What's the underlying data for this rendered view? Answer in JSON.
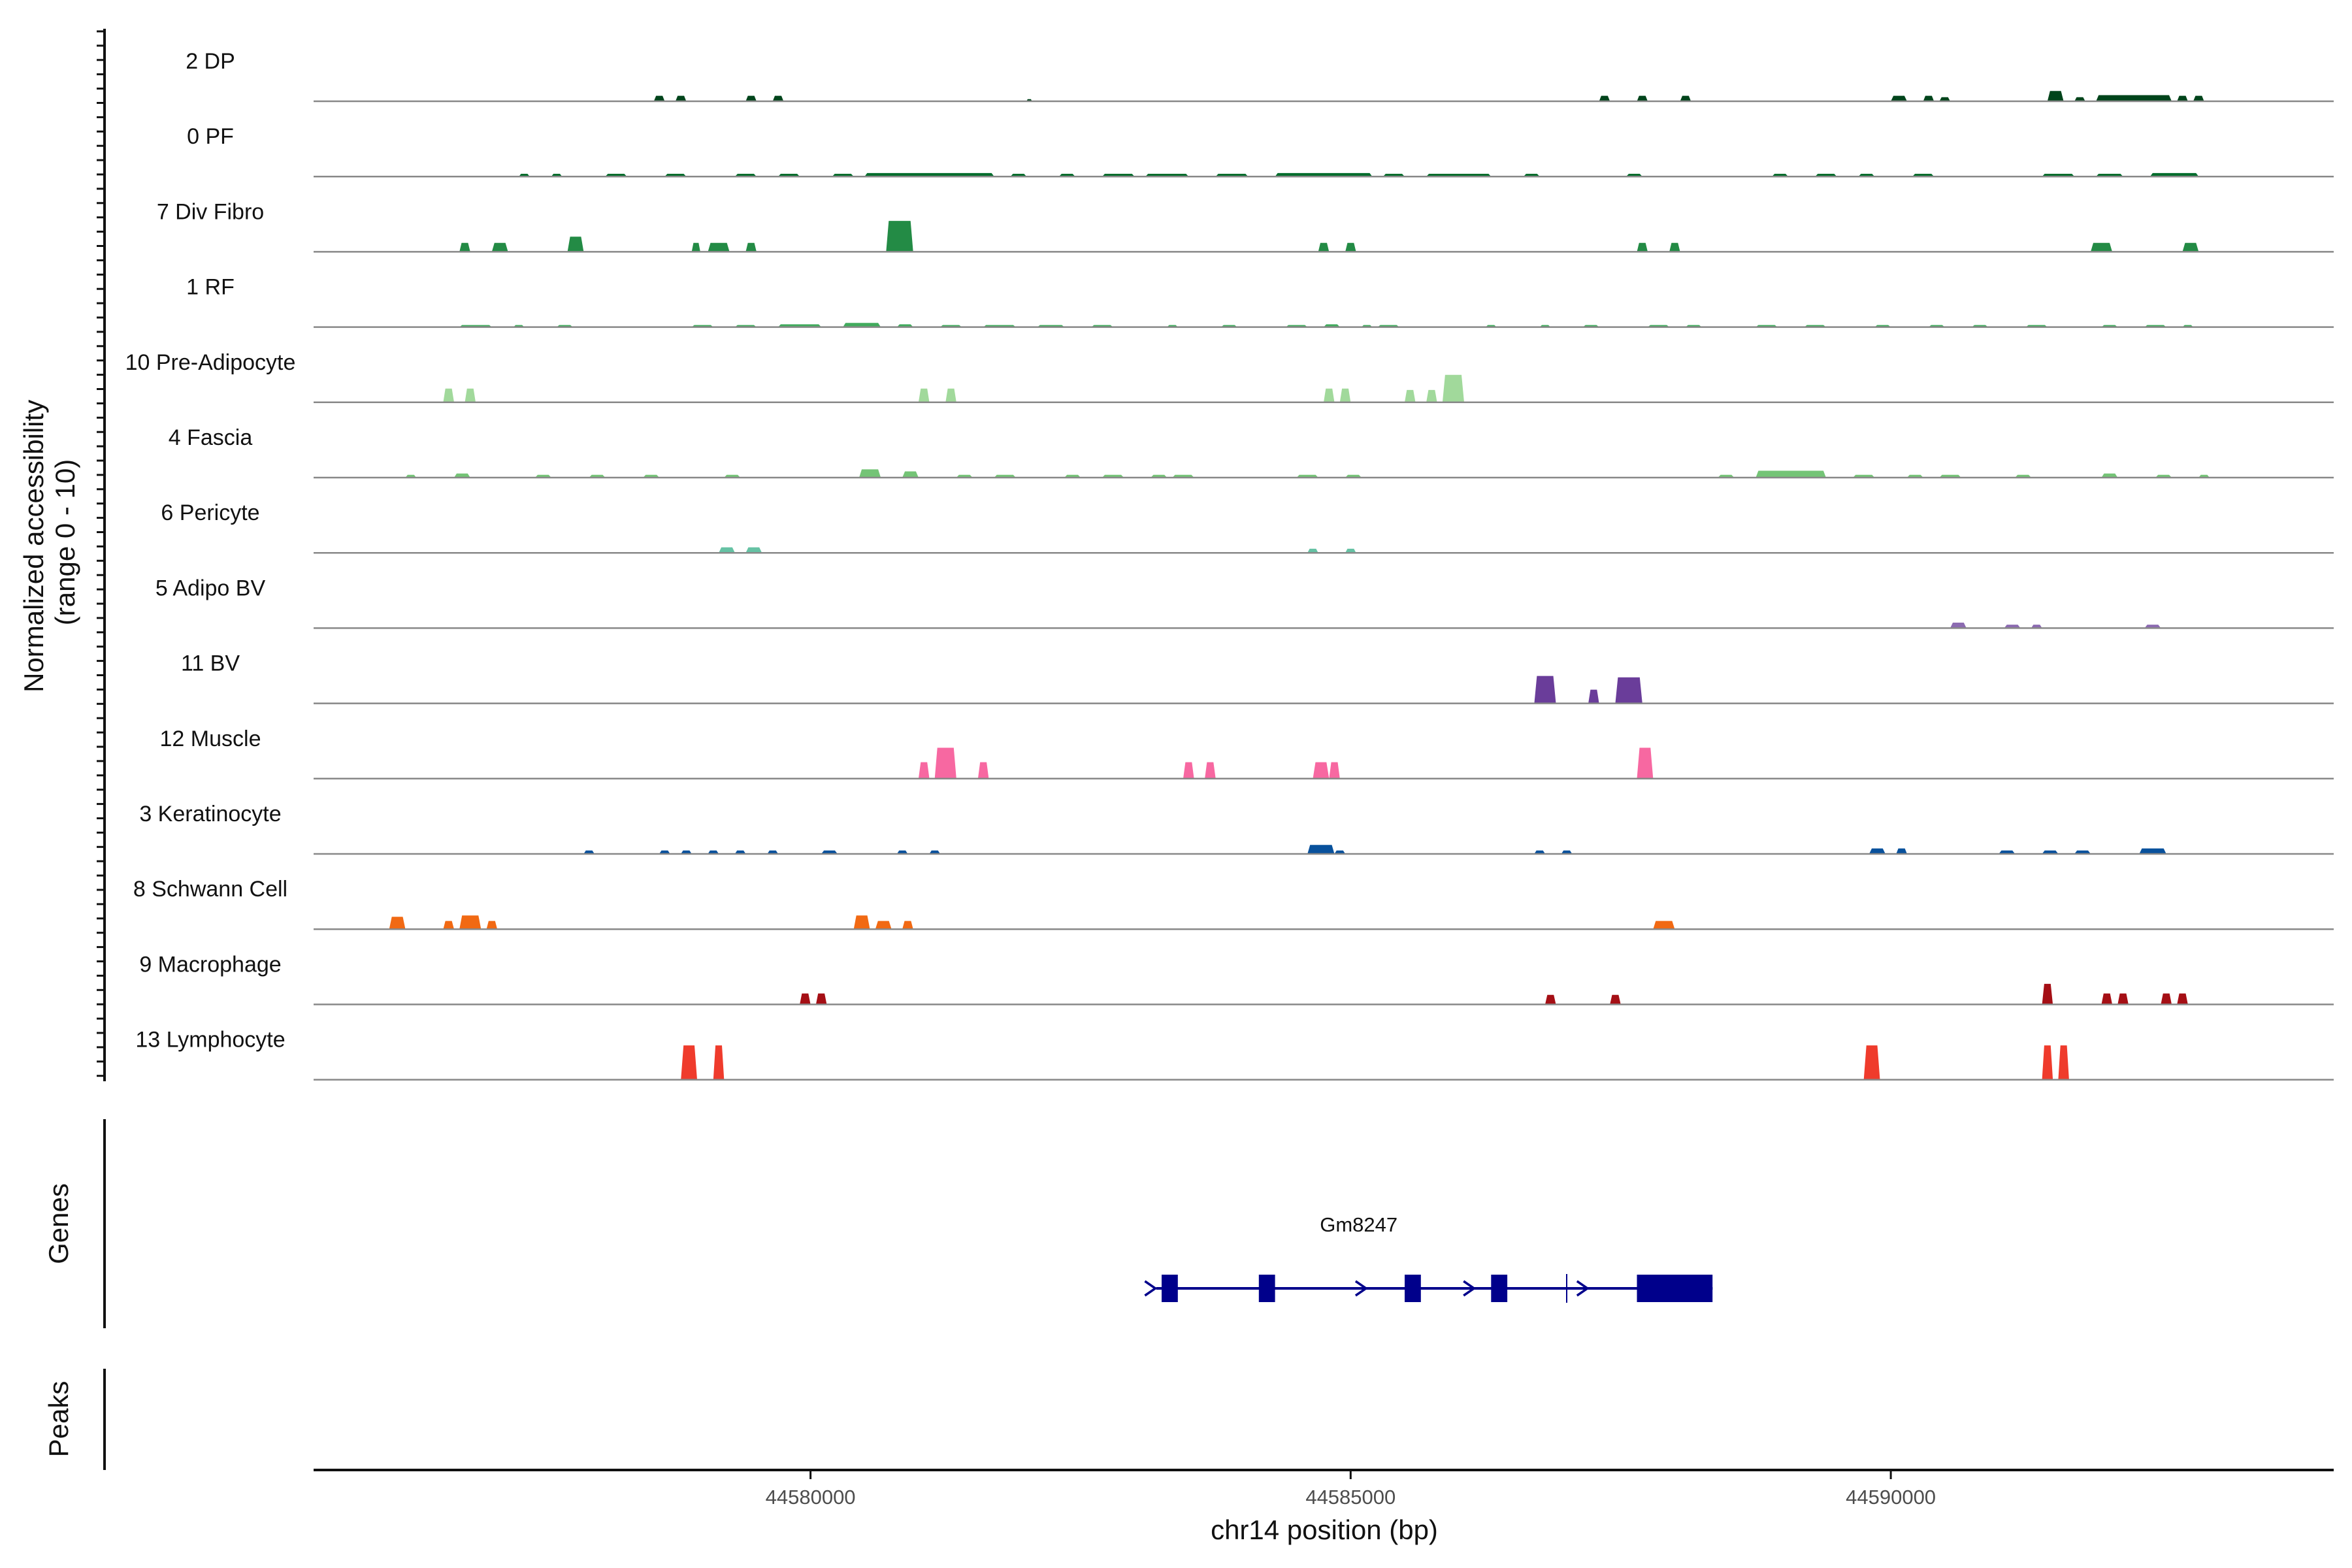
{
  "chart_data": {
    "type": "area",
    "chromosome": "chr14",
    "xlim": [
      44575400,
      44594100
    ],
    "ylim": [
      0,
      10
    ],
    "ylabel_lines": [
      "Normalized accessibility",
      "(range 0 - 10)"
    ],
    "xlabel": "chr14 position (bp)",
    "x_ticks": [
      44580000,
      44585000,
      44590000
    ],
    "x_tick_labels": [
      "44580000",
      "44585000",
      "44590000"
    ],
    "series": [
      {
        "name": "2 DP",
        "color": "#00441b",
        "peaks": [
          [
            44578550,
            44578650,
            0.8
          ],
          [
            44578750,
            44578850,
            0.8
          ],
          [
            44579400,
            44579500,
            0.8
          ],
          [
            44579650,
            44579750,
            0.8
          ],
          [
            44582000,
            44582050,
            0.3
          ],
          [
            44587300,
            44587400,
            0.8
          ],
          [
            44587650,
            44587750,
            0.8
          ],
          [
            44588050,
            44588150,
            0.8
          ],
          [
            44590000,
            44590150,
            0.8
          ],
          [
            44590300,
            44590400,
            0.8
          ],
          [
            44590450,
            44590550,
            0.6
          ],
          [
            44591450,
            44591600,
            1.5
          ],
          [
            44591700,
            44591800,
            0.6
          ],
          [
            44591900,
            44592600,
            0.9
          ],
          [
            44592650,
            44592750,
            0.8
          ],
          [
            44592800,
            44592900,
            0.8
          ]
        ]
      },
      {
        "name": "0 PF",
        "color": "#006d2c",
        "peaks": [
          [
            44577300,
            44577400,
            0.4
          ],
          [
            44577600,
            44577700,
            0.4
          ],
          [
            44578100,
            44578300,
            0.4
          ],
          [
            44578650,
            44578850,
            0.4
          ],
          [
            44579300,
            44579500,
            0.4
          ],
          [
            44579700,
            44579900,
            0.4
          ],
          [
            44580200,
            44580400,
            0.4
          ],
          [
            44580500,
            44581700,
            0.5
          ],
          [
            44581850,
            44582000,
            0.4
          ],
          [
            44582300,
            44582450,
            0.4
          ],
          [
            44582700,
            44583000,
            0.4
          ],
          [
            44583100,
            44583500,
            0.4
          ],
          [
            44583750,
            44584050,
            0.4
          ],
          [
            44584300,
            44585200,
            0.5
          ],
          [
            44585300,
            44585500,
            0.4
          ],
          [
            44585700,
            44586300,
            0.4
          ],
          [
            44586600,
            44586750,
            0.4
          ],
          [
            44587550,
            44587700,
            0.4
          ],
          [
            44588900,
            44589050,
            0.4
          ],
          [
            44589300,
            44589500,
            0.4
          ],
          [
            44589700,
            44589850,
            0.4
          ],
          [
            44590200,
            44590400,
            0.4
          ],
          [
            44591400,
            44591700,
            0.4
          ],
          [
            44591900,
            44592150,
            0.4
          ],
          [
            44592400,
            44592850,
            0.5
          ]
        ]
      },
      {
        "name": "7 Div Fibro",
        "color": "#238b45",
        "peaks": [
          [
            44576750,
            44576850,
            1.3
          ],
          [
            44577050,
            44577200,
            1.3
          ],
          [
            44577750,
            44577900,
            2.2
          ],
          [
            44578900,
            44578980,
            1.3
          ],
          [
            44579050,
            44579250,
            1.3
          ],
          [
            44579400,
            44579500,
            1.3
          ],
          [
            44580700,
            44580950,
            4.5
          ],
          [
            44584700,
            44584800,
            1.3
          ],
          [
            44584950,
            44585050,
            1.3
          ],
          [
            44587650,
            44587750,
            1.3
          ],
          [
            44587950,
            44588050,
            1.3
          ],
          [
            44591850,
            44592050,
            1.3
          ],
          [
            44592700,
            44592850,
            1.3
          ]
        ]
      },
      {
        "name": "1 RF",
        "color": "#41ab5d",
        "peaks": [
          [
            44576750,
            44577050,
            0.3
          ],
          [
            44577250,
            44577350,
            0.3
          ],
          [
            44577650,
            44577800,
            0.3
          ],
          [
            44578900,
            44579100,
            0.3
          ],
          [
            44579300,
            44579500,
            0.3
          ],
          [
            44579700,
            44580100,
            0.4
          ],
          [
            44580300,
            44580650,
            0.6
          ],
          [
            44580800,
            44580950,
            0.4
          ],
          [
            44581200,
            44581400,
            0.3
          ],
          [
            44581600,
            44581900,
            0.3
          ],
          [
            44582100,
            44582350,
            0.3
          ],
          [
            44582600,
            44582800,
            0.3
          ],
          [
            44583300,
            44583400,
            0.3
          ],
          [
            44583800,
            44583950,
            0.3
          ],
          [
            44584400,
            44584600,
            0.3
          ],
          [
            44584750,
            44584900,
            0.4
          ],
          [
            44585100,
            44585200,
            0.3
          ],
          [
            44585250,
            44585450,
            0.3
          ],
          [
            44586250,
            44586350,
            0.3
          ],
          [
            44586750,
            44586850,
            0.3
          ],
          [
            44587150,
            44587300,
            0.3
          ],
          [
            44587750,
            44587950,
            0.3
          ],
          [
            44588100,
            44588250,
            0.3
          ],
          [
            44588750,
            44588950,
            0.3
          ],
          [
            44589200,
            44589400,
            0.3
          ],
          [
            44589850,
            44590000,
            0.3
          ],
          [
            44590350,
            44590500,
            0.3
          ],
          [
            44590750,
            44590900,
            0.3
          ],
          [
            44591250,
            44591450,
            0.3
          ],
          [
            44591950,
            44592100,
            0.3
          ],
          [
            44592350,
            44592550,
            0.3
          ],
          [
            44592700,
            44592800,
            0.3
          ]
        ]
      },
      {
        "name": "10 Pre-Adipocyte",
        "color": "#a1d99b",
        "peaks": [
          [
            44576600,
            44576700,
            2.0
          ],
          [
            44576800,
            44576900,
            2.0
          ],
          [
            44581000,
            44581100,
            2.0
          ],
          [
            44581250,
            44581350,
            2.0
          ],
          [
            44584750,
            44584850,
            2.0
          ],
          [
            44584900,
            44585000,
            2.0
          ],
          [
            44585500,
            44585600,
            1.8
          ],
          [
            44585700,
            44585800,
            1.8
          ],
          [
            44585850,
            44586050,
            4.0
          ]
        ]
      },
      {
        "name": "4 Fascia",
        "color": "#74c476",
        "peaks": [
          [
            44576250,
            44576350,
            0.4
          ],
          [
            44576700,
            44576850,
            0.6
          ],
          [
            44577450,
            44577600,
            0.4
          ],
          [
            44577950,
            44578100,
            0.4
          ],
          [
            44578450,
            44578600,
            0.4
          ],
          [
            44579200,
            44579350,
            0.4
          ],
          [
            44580450,
            44580650,
            1.2
          ],
          [
            44580850,
            44581000,
            0.9
          ],
          [
            44581350,
            44581500,
            0.4
          ],
          [
            44581700,
            44581900,
            0.4
          ],
          [
            44582350,
            44582500,
            0.4
          ],
          [
            44582700,
            44582900,
            0.4
          ],
          [
            44583150,
            44583300,
            0.4
          ],
          [
            44583350,
            44583550,
            0.4
          ],
          [
            44584500,
            44584700,
            0.4
          ],
          [
            44584950,
            44585100,
            0.4
          ],
          [
            44588400,
            44588550,
            0.4
          ],
          [
            44588750,
            44589400,
            1.0
          ],
          [
            44589650,
            44589850,
            0.4
          ],
          [
            44590150,
            44590300,
            0.4
          ],
          [
            44590450,
            44590650,
            0.4
          ],
          [
            44591150,
            44591300,
            0.4
          ],
          [
            44591950,
            44592100,
            0.6
          ],
          [
            44592450,
            44592600,
            0.4
          ],
          [
            44592850,
            44592950,
            0.4
          ]
        ]
      },
      {
        "name": "6 Pericyte",
        "color": "#66c2a4",
        "peaks": [
          [
            44579150,
            44579300,
            0.8
          ],
          [
            44579400,
            44579550,
            0.8
          ],
          [
            44584600,
            44584700,
            0.6
          ],
          [
            44584950,
            44585050,
            0.6
          ]
        ]
      },
      {
        "name": "5 Adipo BV",
        "color": "#8c6bb1",
        "peaks": [
          [
            44590550,
            44590700,
            0.8
          ],
          [
            44591050,
            44591200,
            0.5
          ],
          [
            44591300,
            44591400,
            0.5
          ],
          [
            44592350,
            44592500,
            0.5
          ]
        ]
      },
      {
        "name": "11 BV",
        "color": "#6a3d9a",
        "peaks": [
          [
            44586700,
            44586900,
            4.0
          ],
          [
            44587200,
            44587300,
            2.0
          ],
          [
            44587450,
            44587700,
            3.8
          ]
        ]
      },
      {
        "name": "12 Muscle",
        "color": "#f768a1",
        "peaks": [
          [
            44581000,
            44581100,
            2.4
          ],
          [
            44581150,
            44581350,
            4.5
          ],
          [
            44581550,
            44581650,
            2.4
          ],
          [
            44583450,
            44583550,
            2.4
          ],
          [
            44583650,
            44583750,
            2.4
          ],
          [
            44584650,
            44584800,
            2.4
          ],
          [
            44584800,
            44584900,
            2.4
          ],
          [
            44587650,
            44587800,
            4.5
          ]
        ]
      },
      {
        "name": "3 Keratinocyte",
        "color": "#08519c",
        "peaks": [
          [
            44577900,
            44578000,
            0.5
          ],
          [
            44578600,
            44578700,
            0.5
          ],
          [
            44578800,
            44578900,
            0.5
          ],
          [
            44579050,
            44579150,
            0.5
          ],
          [
            44579300,
            44579400,
            0.5
          ],
          [
            44579600,
            44579700,
            0.5
          ],
          [
            44580100,
            44580250,
            0.5
          ],
          [
            44580800,
            44580900,
            0.5
          ],
          [
            44581100,
            44581200,
            0.5
          ],
          [
            44584600,
            44584850,
            1.3
          ],
          [
            44584850,
            44584950,
            0.5
          ],
          [
            44586700,
            44586800,
            0.5
          ],
          [
            44586950,
            44587050,
            0.5
          ],
          [
            44589800,
            44589950,
            0.8
          ],
          [
            44590050,
            44590150,
            0.8
          ],
          [
            44591000,
            44591150,
            0.5
          ],
          [
            44591400,
            44591550,
            0.5
          ],
          [
            44591700,
            44591850,
            0.5
          ],
          [
            44592300,
            44592550,
            0.8
          ]
        ]
      },
      {
        "name": "8 Schwann Cell",
        "color": "#f16913",
        "peaks": [
          [
            44576100,
            44576250,
            1.8
          ],
          [
            44576600,
            44576700,
            1.2
          ],
          [
            44576750,
            44576950,
            2.0
          ],
          [
            44577000,
            44577100,
            1.2
          ],
          [
            44580400,
            44580550,
            2.0
          ],
          [
            44580600,
            44580750,
            1.2
          ],
          [
            44580850,
            44580950,
            1.2
          ],
          [
            44587800,
            44588000,
            1.2
          ]
        ]
      },
      {
        "name": "9 Macrophage",
        "color": "#a50f15",
        "peaks": [
          [
            44579900,
            44580000,
            1.6
          ],
          [
            44580050,
            44580150,
            1.6
          ],
          [
            44586800,
            44586900,
            1.4
          ],
          [
            44587400,
            44587500,
            1.4
          ],
          [
            44591400,
            44591500,
            3.0
          ],
          [
            44591950,
            44592050,
            1.6
          ],
          [
            44592100,
            44592200,
            1.6
          ],
          [
            44592500,
            44592600,
            1.6
          ],
          [
            44592650,
            44592750,
            1.6
          ]
        ]
      },
      {
        "name": "13 Lymphocyte",
        "color": "#ef3b2c",
        "peaks": [
          [
            44578800,
            44578950,
            5.0
          ],
          [
            44579100,
            44579200,
            5.0
          ],
          [
            44589750,
            44589900,
            5.0
          ],
          [
            44591400,
            44591500,
            5.0
          ],
          [
            44591550,
            44591650,
            5.0
          ]
        ]
      }
    ],
    "genes_label": "Genes",
    "peaks_label": "Peaks",
    "gene": {
      "name": "Gm8247",
      "start": 44583200,
      "end": 44588350,
      "strand": "+",
      "color": "#00008b",
      "exons": [
        [
          44583250,
          44583400
        ],
        [
          44584150,
          44584300
        ],
        [
          44585500,
          44585650
        ],
        [
          44586300,
          44586450
        ],
        [
          44587650,
          44588350
        ]
      ],
      "arrows": [
        44583150,
        44585100,
        44586100,
        44587150
      ],
      "marks": [
        44587000
      ]
    }
  }
}
